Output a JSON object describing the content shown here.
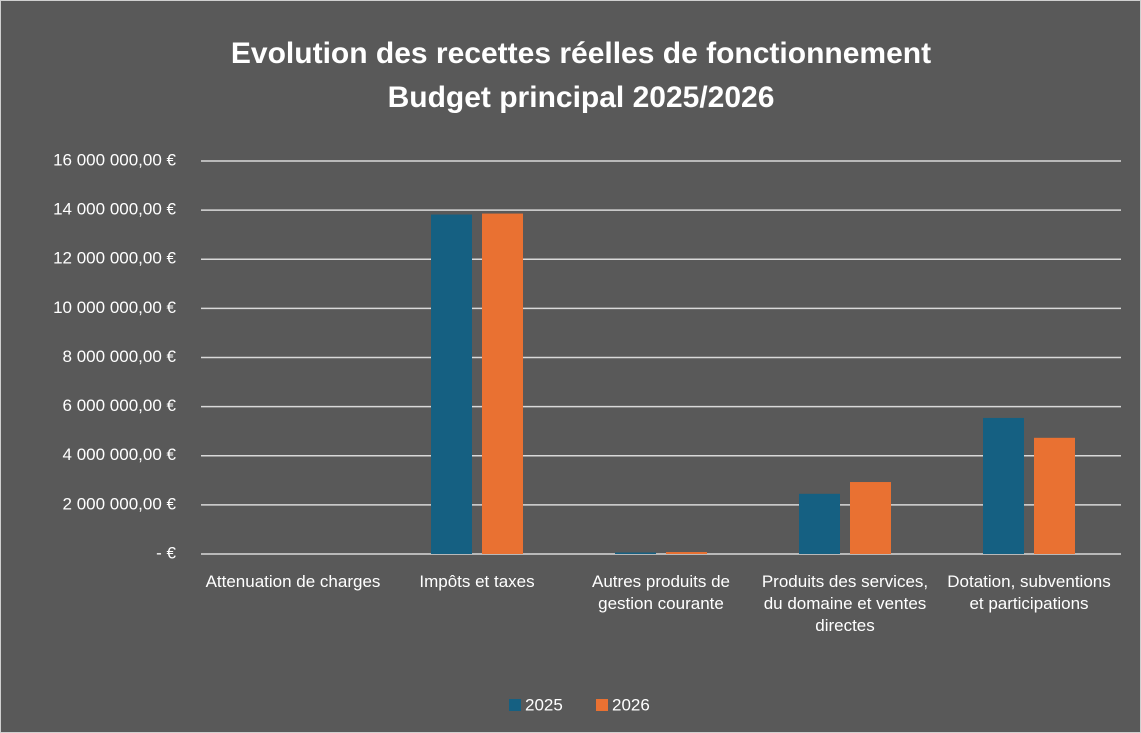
{
  "chart_data": {
    "type": "bar",
    "title": "Evolution des recettes réelles de fonctionnement",
    "subtitle": "Budget principal 2025/2026",
    "categories": [
      "Attenuation de charges",
      "Impôts et taxes",
      "Autres produits de gestion courante",
      "Produits des services, du domaine et ventes directes",
      "Dotation, subventions et participations"
    ],
    "series": [
      {
        "name": "2025",
        "color": "#156082",
        "values": [
          0,
          13820000,
          60000,
          2450000,
          5540000
        ]
      },
      {
        "name": "2026",
        "color": "#e97132",
        "values": [
          0,
          13860000,
          80000,
          2930000,
          4730000
        ]
      }
    ],
    "ylim": [
      0,
      16000000
    ],
    "yticks": [
      {
        "value": 0,
        "label": "-  €"
      },
      {
        "value": 2000000,
        "label": "2 000 000,00 €"
      },
      {
        "value": 4000000,
        "label": "4 000 000,00 €"
      },
      {
        "value": 6000000,
        "label": "6 000 000,00 €"
      },
      {
        "value": 8000000,
        "label": "8 000 000,00 €"
      },
      {
        "value": 10000000,
        "label": "10 000 000,00 €"
      },
      {
        "value": 12000000,
        "label": "12 000 000,00 €"
      },
      {
        "value": 14000000,
        "label": "14 000 000,00 €"
      },
      {
        "value": 16000000,
        "label": "16 000 000,00 €"
      }
    ],
    "grid": true,
    "legend": "bottom"
  }
}
